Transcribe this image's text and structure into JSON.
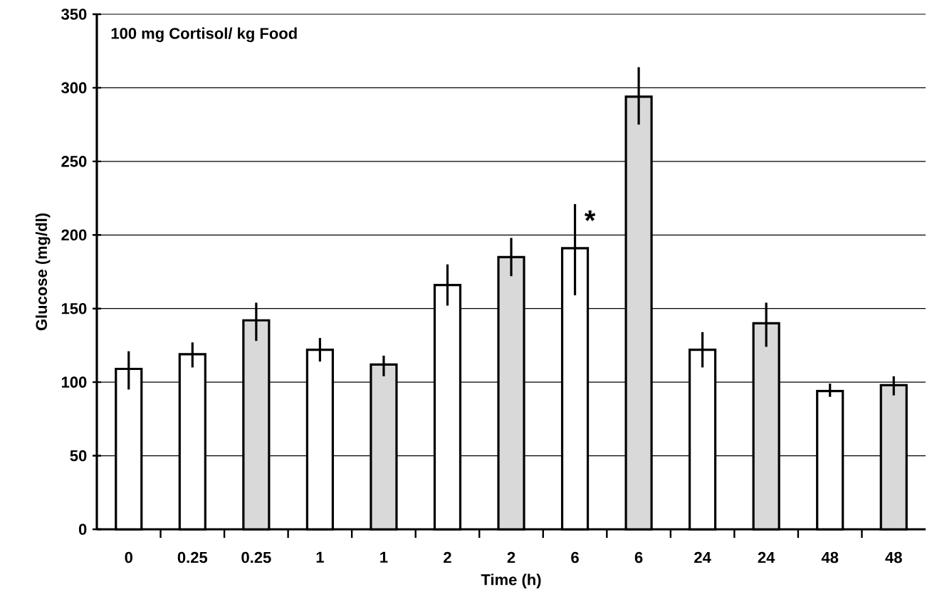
{
  "chart_data": {
    "type": "bar",
    "title": "100 mg Cortisol/ kg Food",
    "xlabel": "Time (h)",
    "ylabel": "Glucose (mg/dl)",
    "categories": [
      "0",
      "0.25",
      "0.25",
      "1",
      "1",
      "2",
      "2",
      "6",
      "6",
      "24",
      "24",
      "48",
      "48"
    ],
    "values": [
      109,
      119,
      142,
      122,
      112,
      166,
      185,
      191,
      294,
      122,
      140,
      94,
      98
    ],
    "colors": [
      "#ffffff",
      "#ffffff",
      "#d9d9d9",
      "#ffffff",
      "#d9d9d9",
      "#ffffff",
      "#d9d9d9",
      "#ffffff",
      "#d9d9d9",
      "#ffffff",
      "#d9d9d9",
      "#ffffff",
      "#d9d9d9"
    ],
    "errors": [
      [
        95,
        121
      ],
      [
        110,
        127
      ],
      [
        128,
        154
      ],
      [
        114,
        130
      ],
      [
        104,
        118
      ],
      [
        152,
        180
      ],
      [
        172,
        198
      ],
      [
        159,
        221
      ],
      [
        275,
        314
      ],
      [
        110,
        134
      ],
      [
        124,
        154
      ],
      [
        90,
        99
      ],
      [
        91,
        104
      ]
    ],
    "ylim": [
      0,
      350
    ],
    "yticks": [
      0,
      50,
      100,
      150,
      200,
      250,
      300,
      350
    ],
    "grid": "y",
    "annotations": [
      "*"
    ]
  }
}
